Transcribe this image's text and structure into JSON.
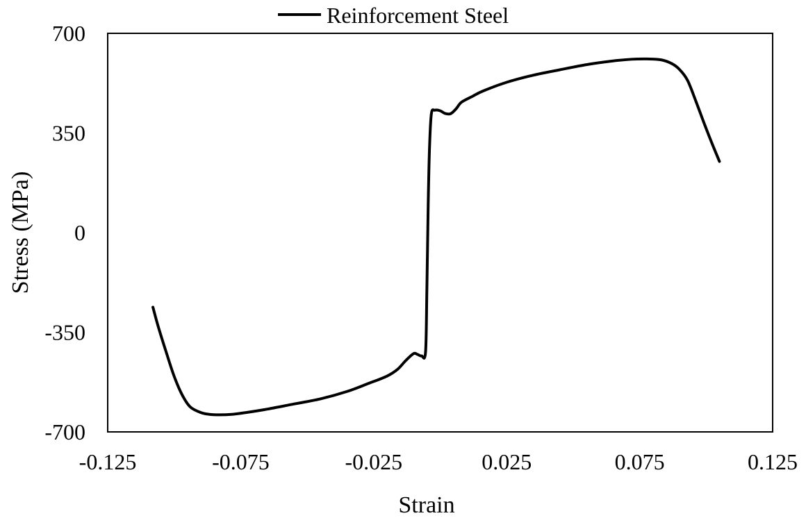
{
  "chart_data": {
    "type": "line",
    "title": "",
    "xlabel": "Strain",
    "ylabel": "Stress (MPa)",
    "xlim": [
      -0.125,
      0.125
    ],
    "ylim": [
      -700,
      700
    ],
    "xticks": [
      "-0.125",
      "-0.075",
      "-0.025",
      "0.025",
      "0.075",
      "0.125"
    ],
    "xtick_values": [
      -0.125,
      -0.075,
      -0.025,
      0.025,
      0.075,
      0.125
    ],
    "yticks": [
      "700",
      "350",
      "0",
      "-350",
      "-700"
    ],
    "ytick_values": [
      700,
      350,
      0,
      -350,
      -700
    ],
    "grid": false,
    "legend_position": "top-center",
    "series": [
      {
        "name": "Reinforcement Steel",
        "color": "#000000",
        "x": [
          -0.108,
          -0.106,
          -0.103,
          -0.1,
          -0.097,
          -0.094,
          -0.09,
          -0.087,
          -0.083,
          -0.078,
          -0.073,
          -0.065,
          -0.055,
          -0.045,
          -0.035,
          -0.027,
          -0.02,
          -0.016,
          -0.013,
          -0.01,
          -0.0085,
          -0.007,
          -0.0055,
          -0.005,
          -0.0045,
          -0.004,
          -0.0033,
          -0.002,
          0.0,
          0.002,
          0.004,
          0.006,
          0.008,
          0.012,
          0.016,
          0.025,
          0.035,
          0.045,
          0.055,
          0.065,
          0.072,
          0.078,
          0.083,
          0.087,
          0.09,
          0.093,
          0.096,
          0.099,
          0.102,
          0.105
        ],
        "y": [
          -262,
          -330,
          -420,
          -505,
          -570,
          -612,
          -632,
          -638,
          -640,
          -638,
          -632,
          -620,
          -602,
          -584,
          -558,
          -530,
          -504,
          -480,
          -450,
          -425,
          -428,
          -433,
          -420,
          -200,
          100,
          300,
          418,
          430,
          428,
          418,
          418,
          435,
          458,
          478,
          497,
          528,
          553,
          572,
          590,
          603,
          609,
          610,
          607,
          594,
          573,
          535,
          465,
          390,
          318,
          250
        ]
      }
    ]
  }
}
